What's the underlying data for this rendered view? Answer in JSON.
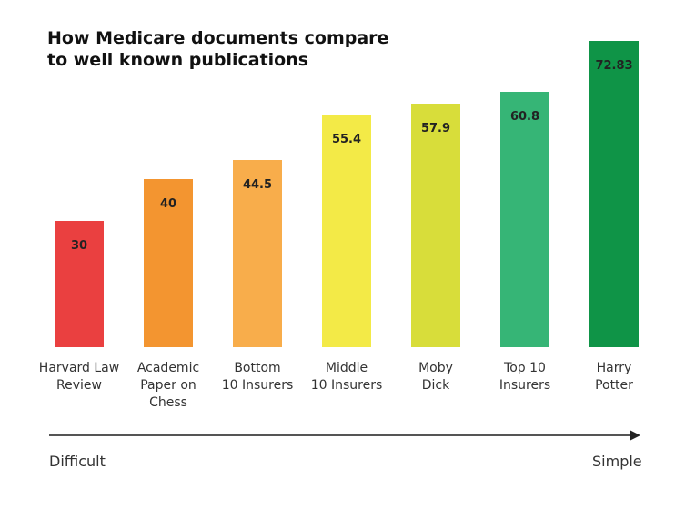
{
  "chart_data": {
    "type": "bar",
    "title": "How Medicare documents compare\nto well known publications",
    "categories": [
      "Harvard Law\nReview",
      "Academic\nPaper on\nChess",
      "Bottom\n10 Insurers",
      "Middle\n10 Insurers",
      "Moby\nDick",
      "Top 10\nInsurers",
      "Harry\nPotter"
    ],
    "values": [
      30,
      40,
      44.5,
      55.4,
      57.9,
      60.8,
      72.83
    ],
    "value_labels": [
      "30",
      "40",
      "44.5",
      "55.4",
      "57.9",
      "60.8",
      "72.83"
    ],
    "colors": [
      "#ea4040",
      "#f39530",
      "#f8ad4b",
      "#f3ea47",
      "#d8dd3a",
      "#36b576",
      "#0f9447"
    ],
    "axis": {
      "left_label": "Difficult",
      "right_label": "Simple"
    },
    "xlabel": "",
    "ylabel": "",
    "grid": false
  }
}
